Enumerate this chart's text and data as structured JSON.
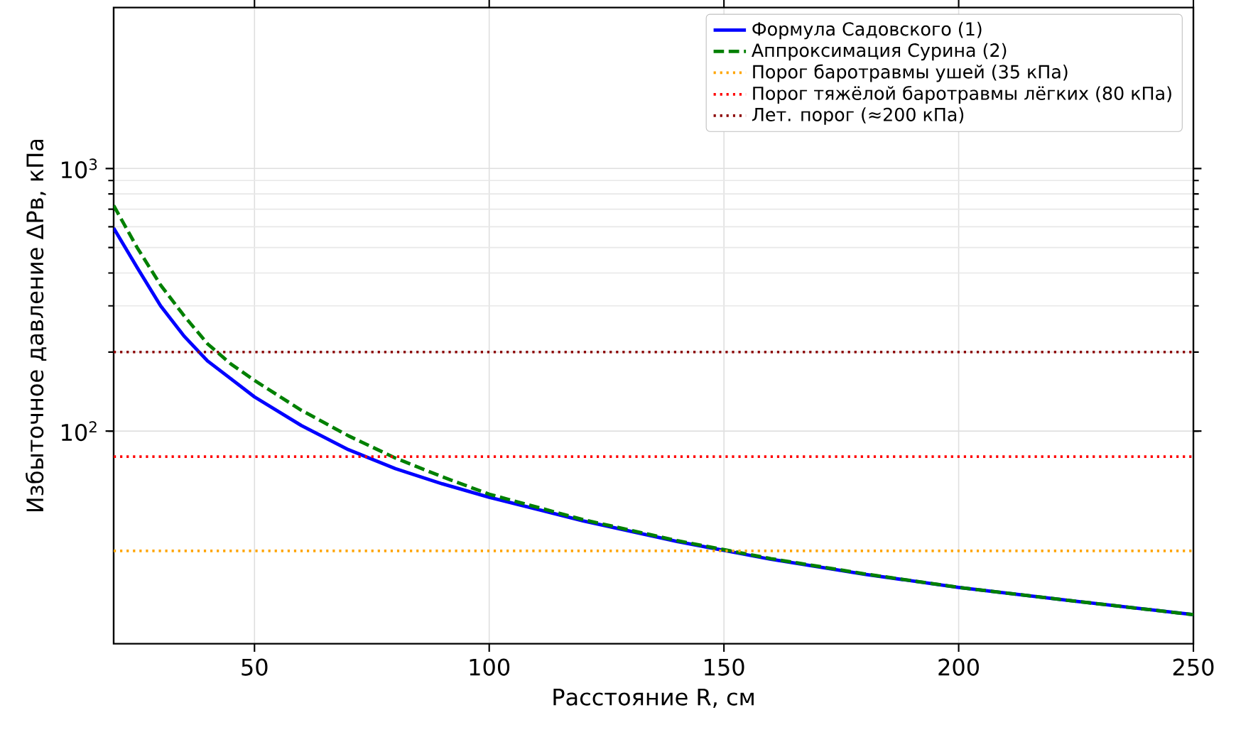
{
  "chart_data": {
    "type": "line",
    "xlabel": "Расстояние R, см",
    "ylabel": "Избыточное давление ΔPв, кПа",
    "log": "y",
    "grid": true,
    "legend": "top right",
    "marker": "none",
    "xlim": [
      20,
      250
    ],
    "xticks": [
      50,
      100,
      150,
      200,
      250
    ],
    "ylim": [
      15.5,
      4100
    ],
    "yticks": [
      {
        "value": 100,
        "label": "10$^{2}$"
      },
      {
        "value": 1000,
        "label": "10$^{3}$"
      }
    ],
    "x": [
      20,
      25,
      30,
      35,
      40,
      45,
      50,
      60,
      70,
      80,
      90,
      100,
      120,
      140,
      160,
      180,
      200,
      225,
      250
    ],
    "series": [
      {
        "name": "Формула Садовского (1)",
        "color": "#0000ff",
        "line_style": "solid",
        "values": [
          593,
          420,
          300,
          230,
          185,
          158,
          135,
          105,
          85,
          72,
          63,
          56,
          45.5,
          38,
          32.5,
          28.5,
          25.4,
          22.5,
          20
        ]
      },
      {
        "name": "Аппроксимация Сурина (2)",
        "color": "#008000",
        "line_style": "dashed",
        "values": [
          723,
          500,
          360,
          275,
          215,
          180,
          156,
          120,
          96,
          79,
          67,
          57.5,
          46,
          38.3,
          32.7,
          28.6,
          25.4,
          22.5,
          20
        ]
      }
    ],
    "ref_lines": [
      {
        "axis": "y",
        "value": 35,
        "label": "Порог баротравмы ушей (35 кПа)",
        "color": "#ffa500",
        "line_style": "dotted"
      },
      {
        "axis": "y",
        "value": 80,
        "label": "Порог тяжёлой баротравмы лёгких (80 кПа)",
        "color": "#ff0000",
        "line_style": "dotted"
      },
      {
        "axis": "y",
        "value": 200,
        "label": "Лет. порог (≈200 кПа)",
        "color": "#8b0000",
        "line_style": "dotted"
      }
    ]
  }
}
